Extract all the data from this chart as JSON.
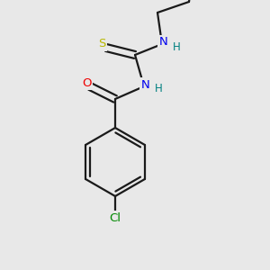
{
  "background_color": "#e8e8e8",
  "bond_color": "#1a1a1a",
  "atom_colors": {
    "S": "#b8b800",
    "N": "#0000ee",
    "O": "#ee0000",
    "Cl": "#008800",
    "H": "#008080",
    "C": "#1a1a1a"
  },
  "line_width": 1.6,
  "figsize": [
    3.0,
    3.0
  ],
  "dpi": 100
}
